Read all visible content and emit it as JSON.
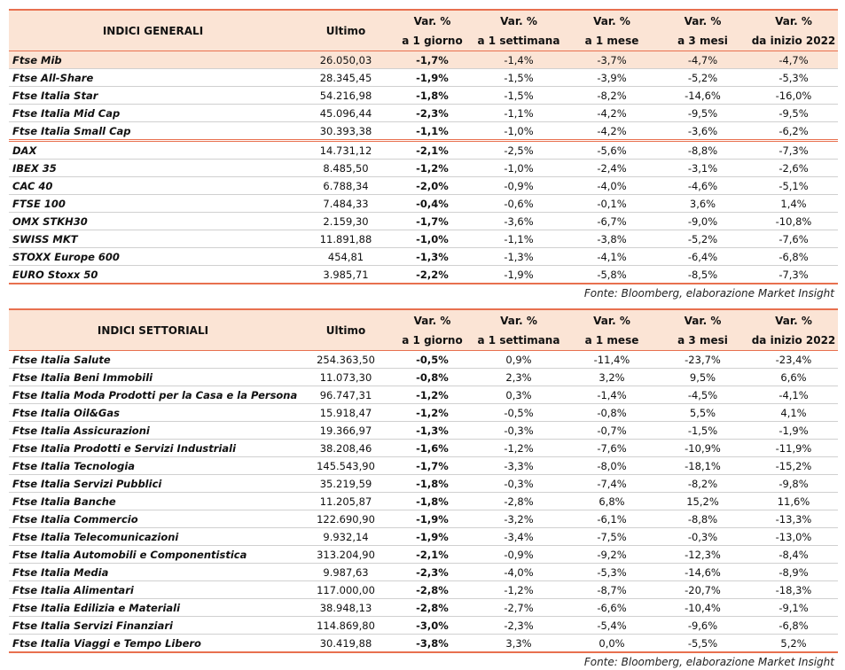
{
  "tables": [
    {
      "columns": [
        "INDICI GENERALI",
        "Ultimo",
        [
          "Var. %",
          "a 1 giorno"
        ],
        [
          "Var. %",
          "a 1 settimana"
        ],
        [
          "Var. %",
          "a 1 mese"
        ],
        [
          "Var. %",
          "a 3 mesi"
        ],
        [
          "Var. %",
          "da inizio 2022"
        ]
      ],
      "groups": [
        [
          [
            "Ftse Mib",
            "26.050,03",
            "-1,7%",
            "-1,4%",
            "-3,7%",
            "-4,7%",
            "-4,7%"
          ],
          [
            "Ftse All-Share",
            "28.345,45",
            "-1,9%",
            "-1,5%",
            "-3,9%",
            "-5,2%",
            "-5,3%"
          ],
          [
            "Ftse Italia Star",
            "54.216,98",
            "-1,8%",
            "-1,5%",
            "-8,2%",
            "-14,6%",
            "-16,0%"
          ],
          [
            "Ftse Italia Mid Cap",
            "45.096,44",
            "-2,3%",
            "-1,1%",
            "-4,2%",
            "-9,5%",
            "-9,5%"
          ],
          [
            "Ftse Italia Small Cap",
            "30.393,38",
            "-1,1%",
            "-1,0%",
            "-4,2%",
            "-3,6%",
            "-6,2%"
          ]
        ],
        [
          [
            "DAX",
            "14.731,12",
            "-2,1%",
            "-2,5%",
            "-5,6%",
            "-8,8%",
            "-7,3%"
          ],
          [
            "IBEX 35",
            "8.485,50",
            "-1,2%",
            "-1,0%",
            "-2,4%",
            "-3,1%",
            "-2,6%"
          ],
          [
            "CAC 40",
            "6.788,34",
            "-2,0%",
            "-0,9%",
            "-4,0%",
            "-4,6%",
            "-5,1%"
          ],
          [
            "FTSE 100",
            "7.484,33",
            "-0,4%",
            "-0,6%",
            "-0,1%",
            "3,6%",
            "1,4%"
          ],
          [
            "OMX STKH30",
            "2.159,30",
            "-1,7%",
            "-3,6%",
            "-6,7%",
            "-9,0%",
            "-10,8%"
          ],
          [
            "SWISS MKT",
            "11.891,88",
            "-1,0%",
            "-1,1%",
            "-3,8%",
            "-5,2%",
            "-7,6%"
          ],
          [
            "STOXX Europe 600",
            "454,81",
            "-1,3%",
            "-1,3%",
            "-4,1%",
            "-6,4%",
            "-6,8%"
          ],
          [
            "EURO Stoxx 50",
            "3.985,71",
            "-2,2%",
            "-1,9%",
            "-5,8%",
            "-8,5%",
            "-7,3%"
          ]
        ]
      ],
      "source": "Fonte: Bloomberg, elaborazione Market Insight"
    },
    {
      "columns": [
        "INDICI SETTORIALI",
        "Ultimo",
        [
          "Var. %",
          "a 1 giorno"
        ],
        [
          "Var. %",
          "a 1 settimana"
        ],
        [
          "Var. %",
          "a 1 mese"
        ],
        [
          "Var. %",
          "a 3 mesi"
        ],
        [
          "Var. %",
          "da inizio 2022"
        ]
      ],
      "groups": [
        [
          [
            "Ftse Italia Salute",
            "254.363,50",
            "-0,5%",
            "0,9%",
            "-11,4%",
            "-23,7%",
            "-23,4%"
          ],
          [
            "Ftse Italia Beni Immobili",
            "11.073,30",
            "-0,8%",
            "2,3%",
            "3,2%",
            "9,5%",
            "6,6%"
          ],
          [
            "Ftse Italia Moda Prodotti per la Casa e la Persona",
            "96.747,31",
            "-1,2%",
            "0,3%",
            "-1,4%",
            "-4,5%",
            "-4,1%"
          ],
          [
            "Ftse Italia Oil&Gas",
            "15.918,47",
            "-1,2%",
            "-0,5%",
            "-0,8%",
            "5,5%",
            "4,1%"
          ],
          [
            "Ftse Italia Assicurazioni",
            "19.366,97",
            "-1,3%",
            "-0,3%",
            "-0,7%",
            "-1,5%",
            "-1,9%"
          ],
          [
            "Ftse Italia Prodotti e Servizi Industriali",
            "38.208,46",
            "-1,6%",
            "-1,2%",
            "-7,6%",
            "-10,9%",
            "-11,9%"
          ],
          [
            "Ftse Italia Tecnologia",
            "145.543,90",
            "-1,7%",
            "-3,3%",
            "-8,0%",
            "-18,1%",
            "-15,2%"
          ],
          [
            "Ftse Italia Servizi Pubblici",
            "35.219,59",
            "-1,8%",
            "-0,3%",
            "-7,4%",
            "-8,2%",
            "-9,8%"
          ],
          [
            "Ftse Italia Banche",
            "11.205,87",
            "-1,8%",
            "-2,8%",
            "6,8%",
            "15,2%",
            "11,6%"
          ],
          [
            "Ftse Italia Commercio",
            "122.690,90",
            "-1,9%",
            "-3,2%",
            "-6,1%",
            "-8,8%",
            "-13,3%"
          ],
          [
            "Ftse Italia Telecomunicazioni",
            "9.932,14",
            "-1,9%",
            "-3,4%",
            "-7,5%",
            "-0,3%",
            "-13,0%"
          ],
          [
            "Ftse Italia Automobili e Componentistica",
            "313.204,90",
            "-2,1%",
            "-0,9%",
            "-9,2%",
            "-12,3%",
            "-8,4%"
          ],
          [
            "Ftse Italia Media",
            "9.987,63",
            "-2,3%",
            "-4,0%",
            "-5,3%",
            "-14,6%",
            "-8,9%"
          ],
          [
            "Ftse Italia Alimentari",
            "117.000,00",
            "-2,8%",
            "-1,2%",
            "-8,7%",
            "-20,7%",
            "-18,3%"
          ],
          [
            "Ftse Italia Edilizia e Materiali",
            "38.948,13",
            "-2,8%",
            "-2,7%",
            "-6,6%",
            "-10,4%",
            "-9,1%"
          ],
          [
            "Ftse Italia Servizi Finanziari",
            "114.869,80",
            "-3,0%",
            "-2,3%",
            "-5,4%",
            "-9,6%",
            "-6,8%"
          ],
          [
            "Ftse Italia Viaggi e Tempo Libero",
            "30.419,88",
            "-3,8%",
            "3,3%",
            "0,0%",
            "-5,5%",
            "5,2%"
          ]
        ]
      ],
      "source": "Fonte: Bloomberg, elaborazione Market Insight"
    }
  ]
}
